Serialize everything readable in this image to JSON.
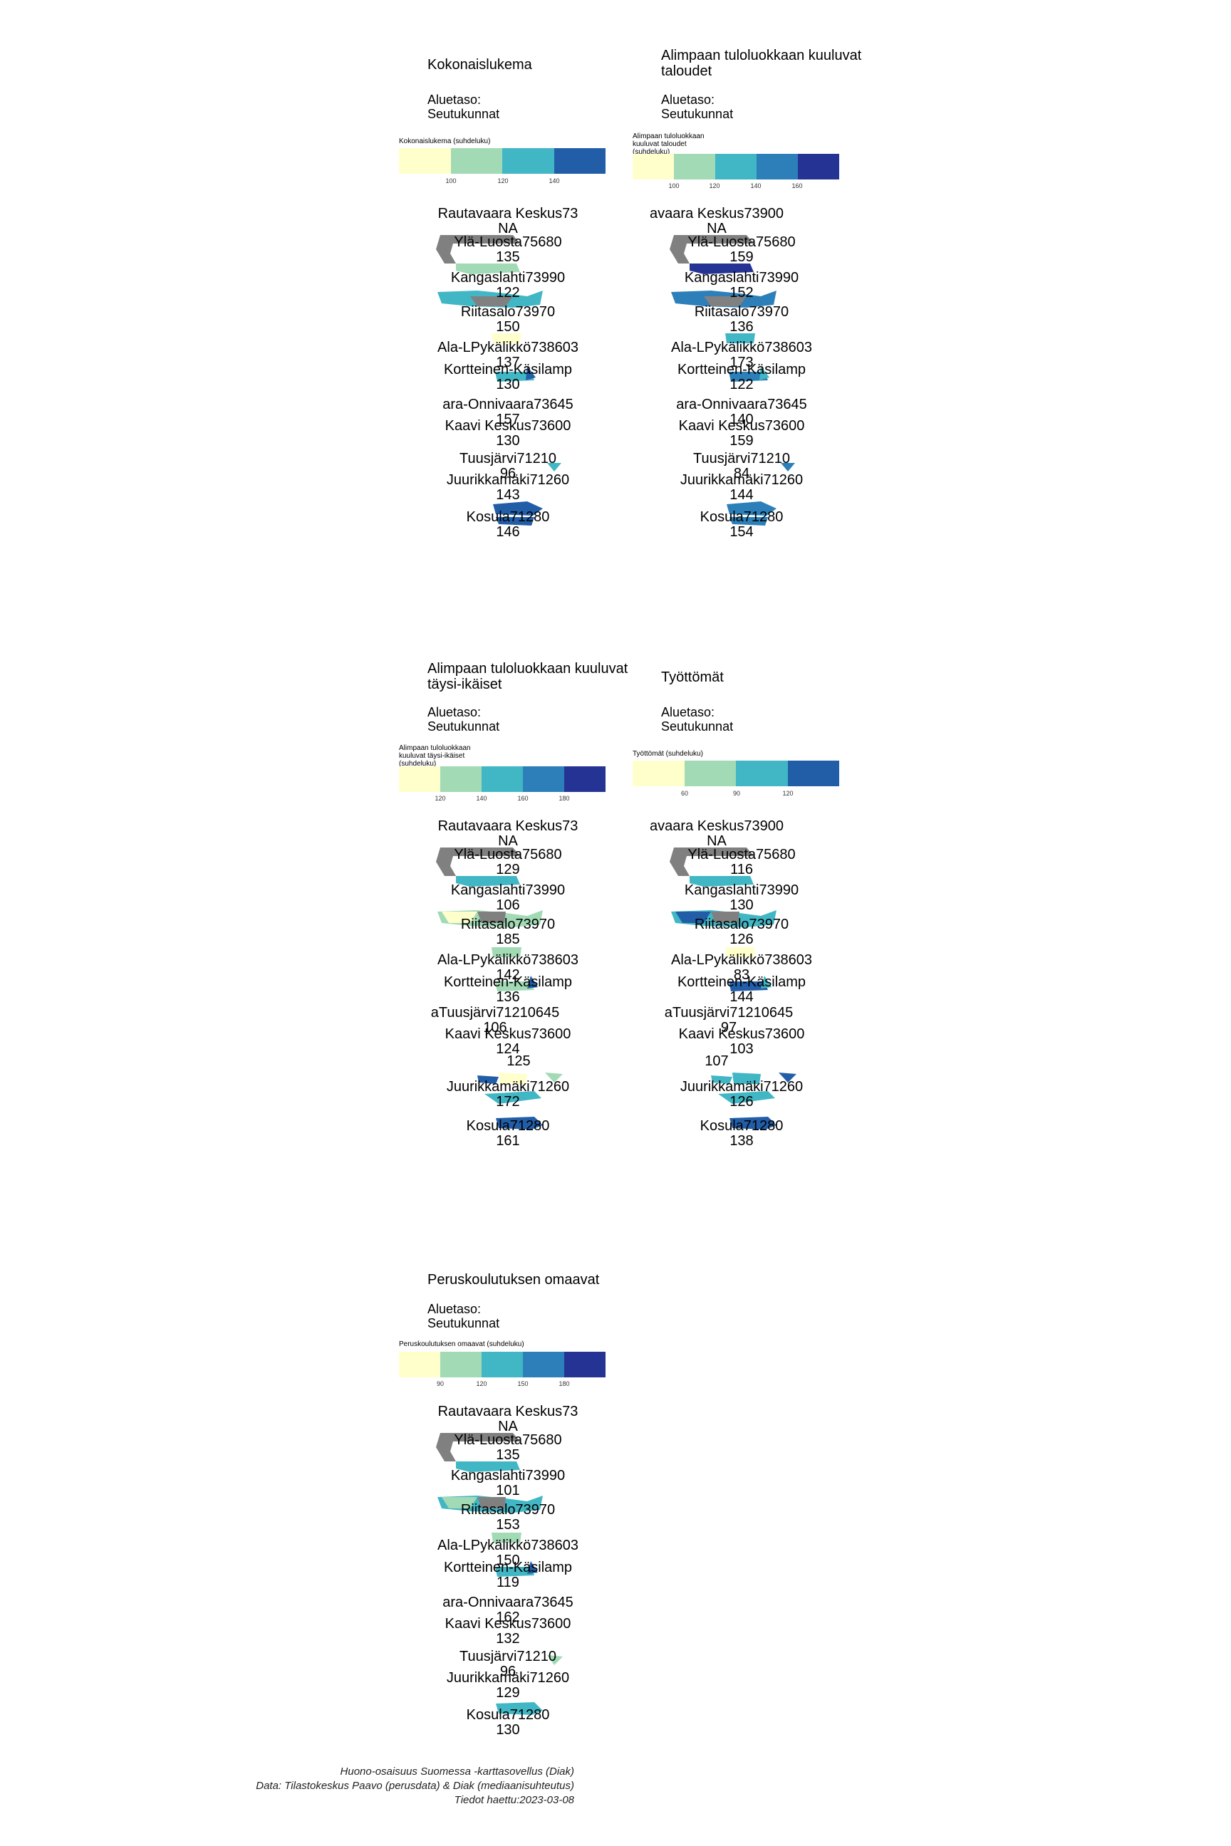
{
  "palette": [
    "#ffffcc",
    "#a1dab4",
    "#41b6c4",
    "#2c7fb8",
    "#253494"
  ],
  "na_color": "#808080",
  "panels": [
    {
      "title": "Kokonaislukema",
      "subtitle": "Aluetaso: Seutukunnat",
      "legend_title": "Kokonaislukema (suhdeluku)",
      "legend_ticks": [
        "100",
        "120",
        "140"
      ],
      "legend_bins": 4,
      "regions": [
        {
          "name": "Rautavaara Keskus73",
          "value": "NA"
        },
        {
          "name": "Ylä-Luosta75680",
          "value": "135"
        },
        {
          "name": "Kangaslahti73990",
          "value": "122"
        },
        {
          "name": "Riitasalo73970",
          "value": "150"
        },
        {
          "name": "Ala-LPykälikkö738603",
          "value": "137"
        },
        {
          "name": "Kortteinen-Käsilamp",
          "value": "130"
        },
        {
          "name": "ara-Onnivaara73645",
          "value": "157"
        },
        {
          "name": "Kaavi Keskus73600",
          "value": "130"
        },
        {
          "name": "Tuusjärvi71210",
          "value": "96"
        },
        {
          "name": "Juurikkamäki71260",
          "value": "143"
        },
        {
          "name": "Kosula71280",
          "value": "146"
        }
      ]
    },
    {
      "title": "Alimpaan tuloluokkaan kuuluvat taloudet",
      "subtitle": "Aluetaso: Seutukunnat",
      "legend_title": "Alimpaan tuloluokkaan kuuluvat taloudet (suhdeluku)",
      "legend_ticks": [
        "100",
        "120",
        "140",
        "160"
      ],
      "legend_bins": 5,
      "regions": [
        {
          "name": "avaara Keskus73900",
          "value": "NA"
        },
        {
          "name": "Ylä-Luosta75680",
          "value": "159"
        },
        {
          "name": "Kangaslahti73990",
          "value": "152"
        },
        {
          "name": "Riitasalo73970",
          "value": "136"
        },
        {
          "name": "Ala-LPykälikkö738603",
          "value": "173"
        },
        {
          "name": "Kortteinen-Käsilamp",
          "value": "122"
        },
        {
          "name": "ara-Onnivaara73645",
          "value": "140"
        },
        {
          "name": "Kaavi Keskus73600",
          "value": "159"
        },
        {
          "name": "Tuusjärvi71210",
          "value": "84"
        },
        {
          "name": "Juurikkamäki71260",
          "value": "144"
        },
        {
          "name": "Kosula71280",
          "value": "154"
        }
      ]
    },
    {
      "title": "Alimpaan tuloluokkaan kuuluvat täysi-ikäiset",
      "subtitle": "Aluetaso: Seutukunnat",
      "legend_title": "Alimpaan tuloluokkaan kuuluvat täysi-ikäiset (suhdeluku)",
      "legend_ticks": [
        "120",
        "140",
        "160",
        "180"
      ],
      "legend_bins": 5,
      "regions": [
        {
          "name": "Rautavaara Keskus73",
          "value": "NA"
        },
        {
          "name": "Ylä-Luosta75680",
          "value": "129"
        },
        {
          "name": "Kangaslahti73990",
          "value": "106"
        },
        {
          "name": "Riitasalo73970",
          "value": "185"
        },
        {
          "name": "Ala-LPykälikkö738603",
          "value": "142"
        },
        {
          "name": "Kortteinen-Käsilamp",
          "value": "136"
        },
        {
          "name": "aTuusjärvi71210645",
          "value": "106"
        },
        {
          "name": "Kaavi Keskus73600",
          "value": "124"
        },
        {
          "name": "",
          "value": "125"
        },
        {
          "name": "Juurikkamäki71260",
          "value": "172"
        },
        {
          "name": "Kosula71280",
          "value": "161"
        }
      ]
    },
    {
      "title": "Työttömät",
      "subtitle": "Aluetaso: Seutukunnat",
      "legend_title": "Työttömät (suhdeluku)",
      "legend_ticks": [
        "60",
        "90",
        "120"
      ],
      "legend_bins": 4,
      "regions": [
        {
          "name": "avaara Keskus73900",
          "value": "NA"
        },
        {
          "name": "Ylä-Luosta75680",
          "value": "116"
        },
        {
          "name": "Kangaslahti73990",
          "value": "130"
        },
        {
          "name": "Riitasalo73970",
          "value": "126"
        },
        {
          "name": "Ala-LPykälikkö738603",
          "value": "83"
        },
        {
          "name": "Kortteinen-Käsilamp",
          "value": "144"
        },
        {
          "name": "aTuusjärvi71210645",
          "value": "97"
        },
        {
          "name": "Kaavi Keskus73600",
          "value": "103"
        },
        {
          "name": "",
          "value": "107"
        },
        {
          "name": "Juurikkamäki71260",
          "value": "126"
        },
        {
          "name": "Kosula71280",
          "value": "138"
        }
      ]
    },
    {
      "title": "Peruskoulutuksen omaavat",
      "subtitle": "Aluetaso: Seutukunnat",
      "legend_title": "Peruskoulutuksen omaavat (suhdeluku)",
      "legend_ticks": [
        "90",
        "120",
        "150",
        "180"
      ],
      "legend_bins": 5,
      "regions": [
        {
          "name": "Rautavaara Keskus73",
          "value": "NA"
        },
        {
          "name": "Ylä-Luosta75680",
          "value": "135"
        },
        {
          "name": "Kangaslahti73990",
          "value": "101"
        },
        {
          "name": "Riitasalo73970",
          "value": "153"
        },
        {
          "name": "Ala-LPykälikkö738603",
          "value": "150"
        },
        {
          "name": "Kortteinen-Käsilamp",
          "value": "119"
        },
        {
          "name": "ara-Onnivaara73645",
          "value": "162"
        },
        {
          "name": "Kaavi Keskus73600",
          "value": "132"
        },
        {
          "name": "Tuusjärvi71210",
          "value": "96"
        },
        {
          "name": "Juurikkamäki71260",
          "value": "129"
        },
        {
          "name": "Kosula71280",
          "value": "130"
        }
      ]
    }
  ],
  "caption": {
    "line1": "Huono-osaisuus Suomessa -karttasovellus (Diak)",
    "line2": "Data: Tilastokeskus Paavo (perusdata) & Diak (mediaanisuhteutus)",
    "line3": "Tiedot haettu:2023-03-08"
  }
}
